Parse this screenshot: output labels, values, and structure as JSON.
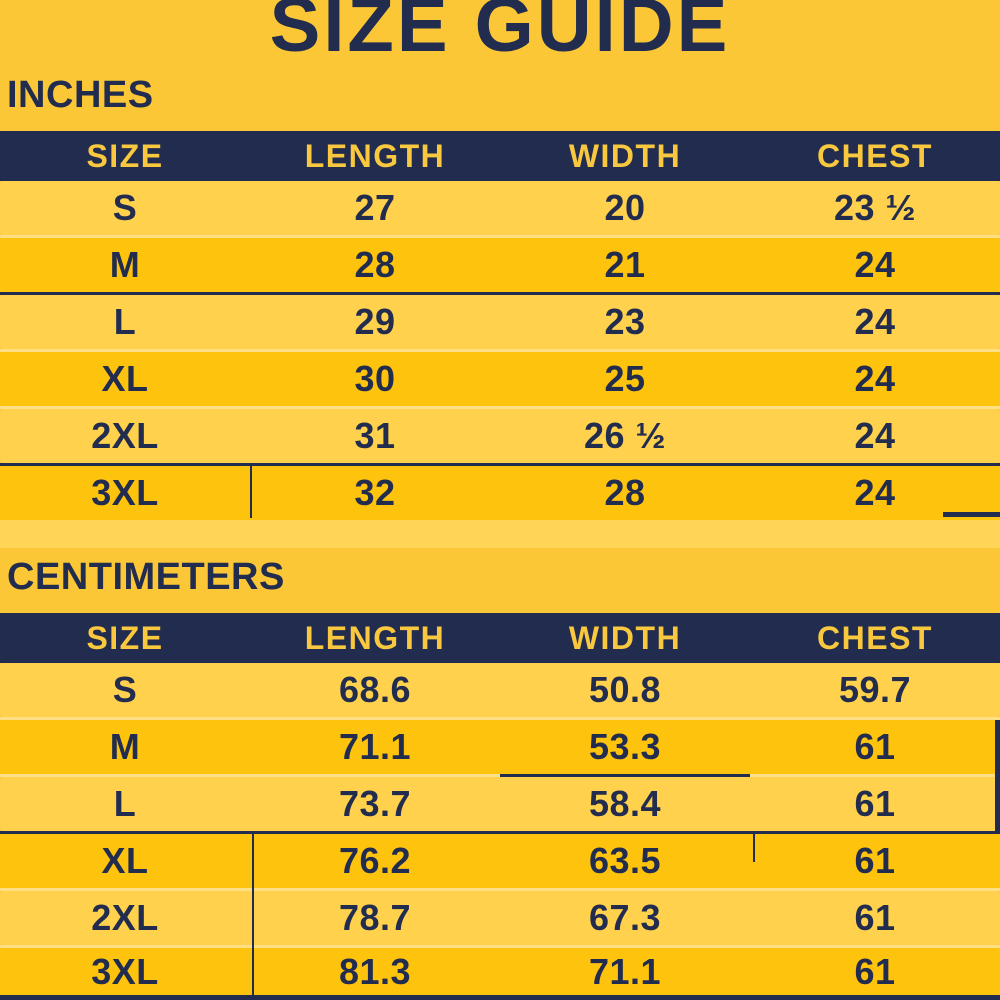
{
  "page": {
    "title": "SIZE GUIDE"
  },
  "colors": {
    "background": "#FBC737",
    "navy": "#212C4E",
    "header_text_yellow": "#F9C83E",
    "row_light": "#FFD14C",
    "row_gold": "#FEC30D",
    "separator": "#FFDF85"
  },
  "tables": [
    {
      "section_label": "INCHES",
      "headers": [
        "SIZE",
        "LENGTH",
        "WIDTH",
        "CHEST"
      ],
      "rows": [
        [
          "S",
          "27",
          "20",
          "23 ½"
        ],
        [
          "M",
          "28",
          "21",
          "24"
        ],
        [
          "L",
          "29",
          "23",
          "24"
        ],
        [
          "XL",
          "30",
          "25",
          "24"
        ],
        [
          "2XL",
          "31",
          "26 ½",
          "24"
        ],
        [
          "3XL",
          "32",
          "28",
          "24"
        ]
      ]
    },
    {
      "section_label": "CENTIMETERS",
      "headers": [
        "SIZE",
        "LENGTH",
        "WIDTH",
        "CHEST"
      ],
      "rows": [
        [
          "S",
          "68.6",
          "50.8",
          "59.7"
        ],
        [
          "M",
          "71.1",
          "53.3",
          "61"
        ],
        [
          "L",
          "73.7",
          "58.4",
          "61"
        ],
        [
          "XL",
          "76.2",
          "63.5",
          "61"
        ],
        [
          "2XL",
          "78.7",
          "67.3",
          "61"
        ],
        [
          "3XL",
          "81.3",
          "71.1",
          "61"
        ]
      ]
    }
  ],
  "chart_data": [
    {
      "type": "table",
      "title": "SIZE GUIDE - INCHES",
      "columns": [
        "SIZE",
        "LENGTH",
        "WIDTH",
        "CHEST"
      ],
      "rows": [
        [
          "S",
          27,
          20,
          23.5
        ],
        [
          "M",
          28,
          21,
          24
        ],
        [
          "L",
          29,
          23,
          24
        ],
        [
          "XL",
          30,
          25,
          24
        ],
        [
          "2XL",
          31,
          26.5,
          24
        ],
        [
          "3XL",
          32,
          28,
          24
        ]
      ]
    },
    {
      "type": "table",
      "title": "SIZE GUIDE - CENTIMETERS",
      "columns": [
        "SIZE",
        "LENGTH",
        "WIDTH",
        "CHEST"
      ],
      "rows": [
        [
          "S",
          68.6,
          50.8,
          59.7
        ],
        [
          "M",
          71.1,
          53.3,
          61
        ],
        [
          "L",
          73.7,
          58.4,
          61
        ],
        [
          "XL",
          76.2,
          63.5,
          61
        ],
        [
          "2XL",
          78.7,
          67.3,
          61
        ],
        [
          "3XL",
          81.3,
          71.1,
          61
        ]
      ]
    }
  ]
}
